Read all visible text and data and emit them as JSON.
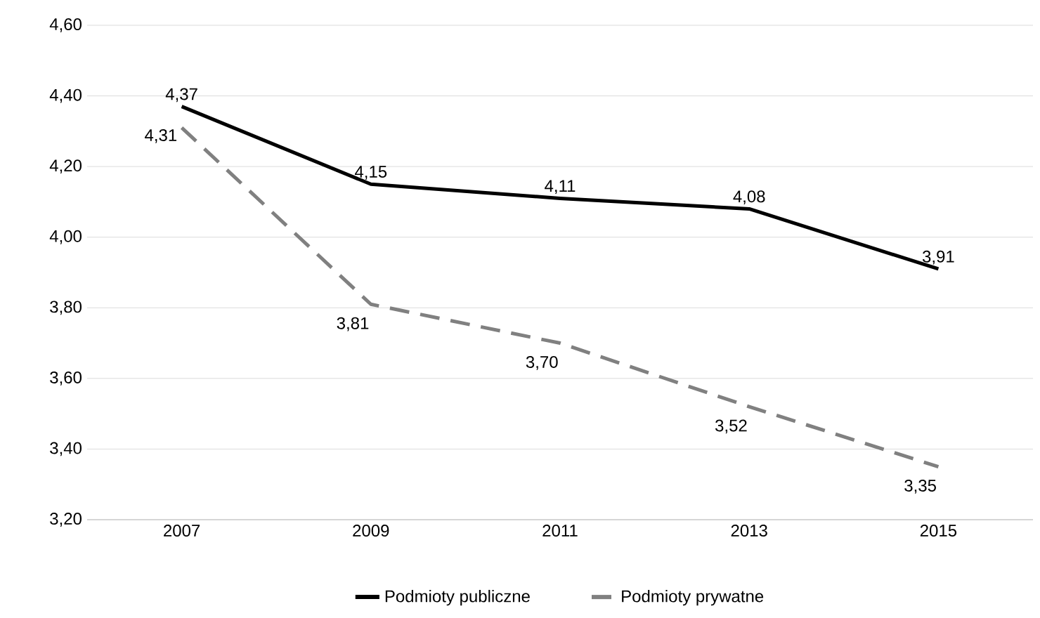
{
  "chart_data": {
    "type": "line",
    "categories": [
      "2007",
      "2009",
      "2011",
      "2013",
      "2015"
    ],
    "series": [
      {
        "name": "Podmioty publiczne",
        "color": "#000000",
        "line_style": "solid",
        "values": [
          4.37,
          4.15,
          4.11,
          4.08,
          3.91
        ],
        "value_labels": [
          "4,37",
          "4,15",
          "4,11",
          "4,08",
          "3,91"
        ]
      },
      {
        "name": "Podmioty prywatne",
        "color": "#808080",
        "line_style": "dashed",
        "values": [
          4.31,
          3.81,
          3.7,
          3.52,
          3.35
        ],
        "value_labels": [
          "4,31",
          "3,81",
          "3,70",
          "3,52",
          "3,35"
        ]
      }
    ],
    "ylim": [
      3.2,
      4.6
    ],
    "yticks": [
      {
        "value": 3.2,
        "label": "3,20"
      },
      {
        "value": 3.4,
        "label": "3,40"
      },
      {
        "value": 3.6,
        "label": "3,60"
      },
      {
        "value": 3.8,
        "label": "3,80"
      },
      {
        "value": 4.0,
        "label": "4,00"
      },
      {
        "value": 4.2,
        "label": "4,20"
      },
      {
        "value": 4.4,
        "label": "4,40"
      },
      {
        "value": 4.6,
        "label": "4,60"
      }
    ],
    "grid": "y",
    "legend": "bottom",
    "marker": "none"
  }
}
